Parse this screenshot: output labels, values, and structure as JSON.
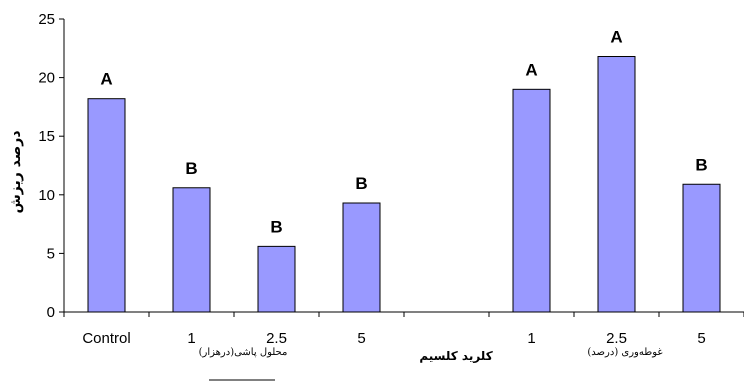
{
  "chart_data": {
    "type": "bar",
    "categories": [
      "Control",
      "1",
      "2.5",
      "5",
      "",
      "1",
      "2.5",
      "5"
    ],
    "values": [
      18.2,
      10.6,
      5.6,
      9.3,
      null,
      19.0,
      21.8,
      10.9
    ],
    "bar_labels": [
      "A",
      "B",
      "B",
      "B",
      "",
      "A",
      "A",
      "B"
    ],
    "ylabel": "درصد ریزش",
    "xlabel": "کلرید کلسیم",
    "group_labels": [
      "محلول پاشی(درهزار)",
      "غوطه‌وری (درصد)"
    ],
    "ylim": [
      0,
      25
    ],
    "yticks": [
      0,
      5,
      10,
      15,
      20,
      25
    ],
    "bar_color": "#9999ff",
    "bar_edge_color": "#000000",
    "grid": false,
    "legend": "none"
  }
}
